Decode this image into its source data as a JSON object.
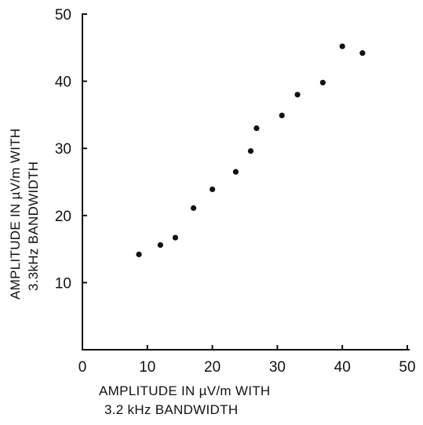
{
  "chart_data": {
    "type": "scatter",
    "xlabel": [
      "AMPLITUDE IN µV/m WITH",
      "3.2 kHz BANDWIDTH"
    ],
    "ylabel": [
      "AMPLITUDE IN µV/m WITH",
      "3.3kHz BANDWIDTH"
    ],
    "xlim": [
      0,
      50
    ],
    "ylim": [
      0,
      50
    ],
    "x_ticks": [
      0,
      10,
      20,
      30,
      40,
      50
    ],
    "y_ticks": [
      10,
      20,
      30,
      40,
      50
    ],
    "grid": false,
    "points": [
      {
        "x": 8.7,
        "y": 14.2
      },
      {
        "x": 12.0,
        "y": 15.6
      },
      {
        "x": 14.3,
        "y": 16.7
      },
      {
        "x": 17.1,
        "y": 21.1
      },
      {
        "x": 20.0,
        "y": 23.9
      },
      {
        "x": 23.6,
        "y": 26.5
      },
      {
        "x": 25.9,
        "y": 29.6
      },
      {
        "x": 26.8,
        "y": 33.0
      },
      {
        "x": 30.7,
        "y": 34.9
      },
      {
        "x": 33.1,
        "y": 38.0
      },
      {
        "x": 37.0,
        "y": 39.8
      },
      {
        "x": 40.0,
        "y": 45.2
      },
      {
        "x": 43.1,
        "y": 44.2
      }
    ]
  }
}
